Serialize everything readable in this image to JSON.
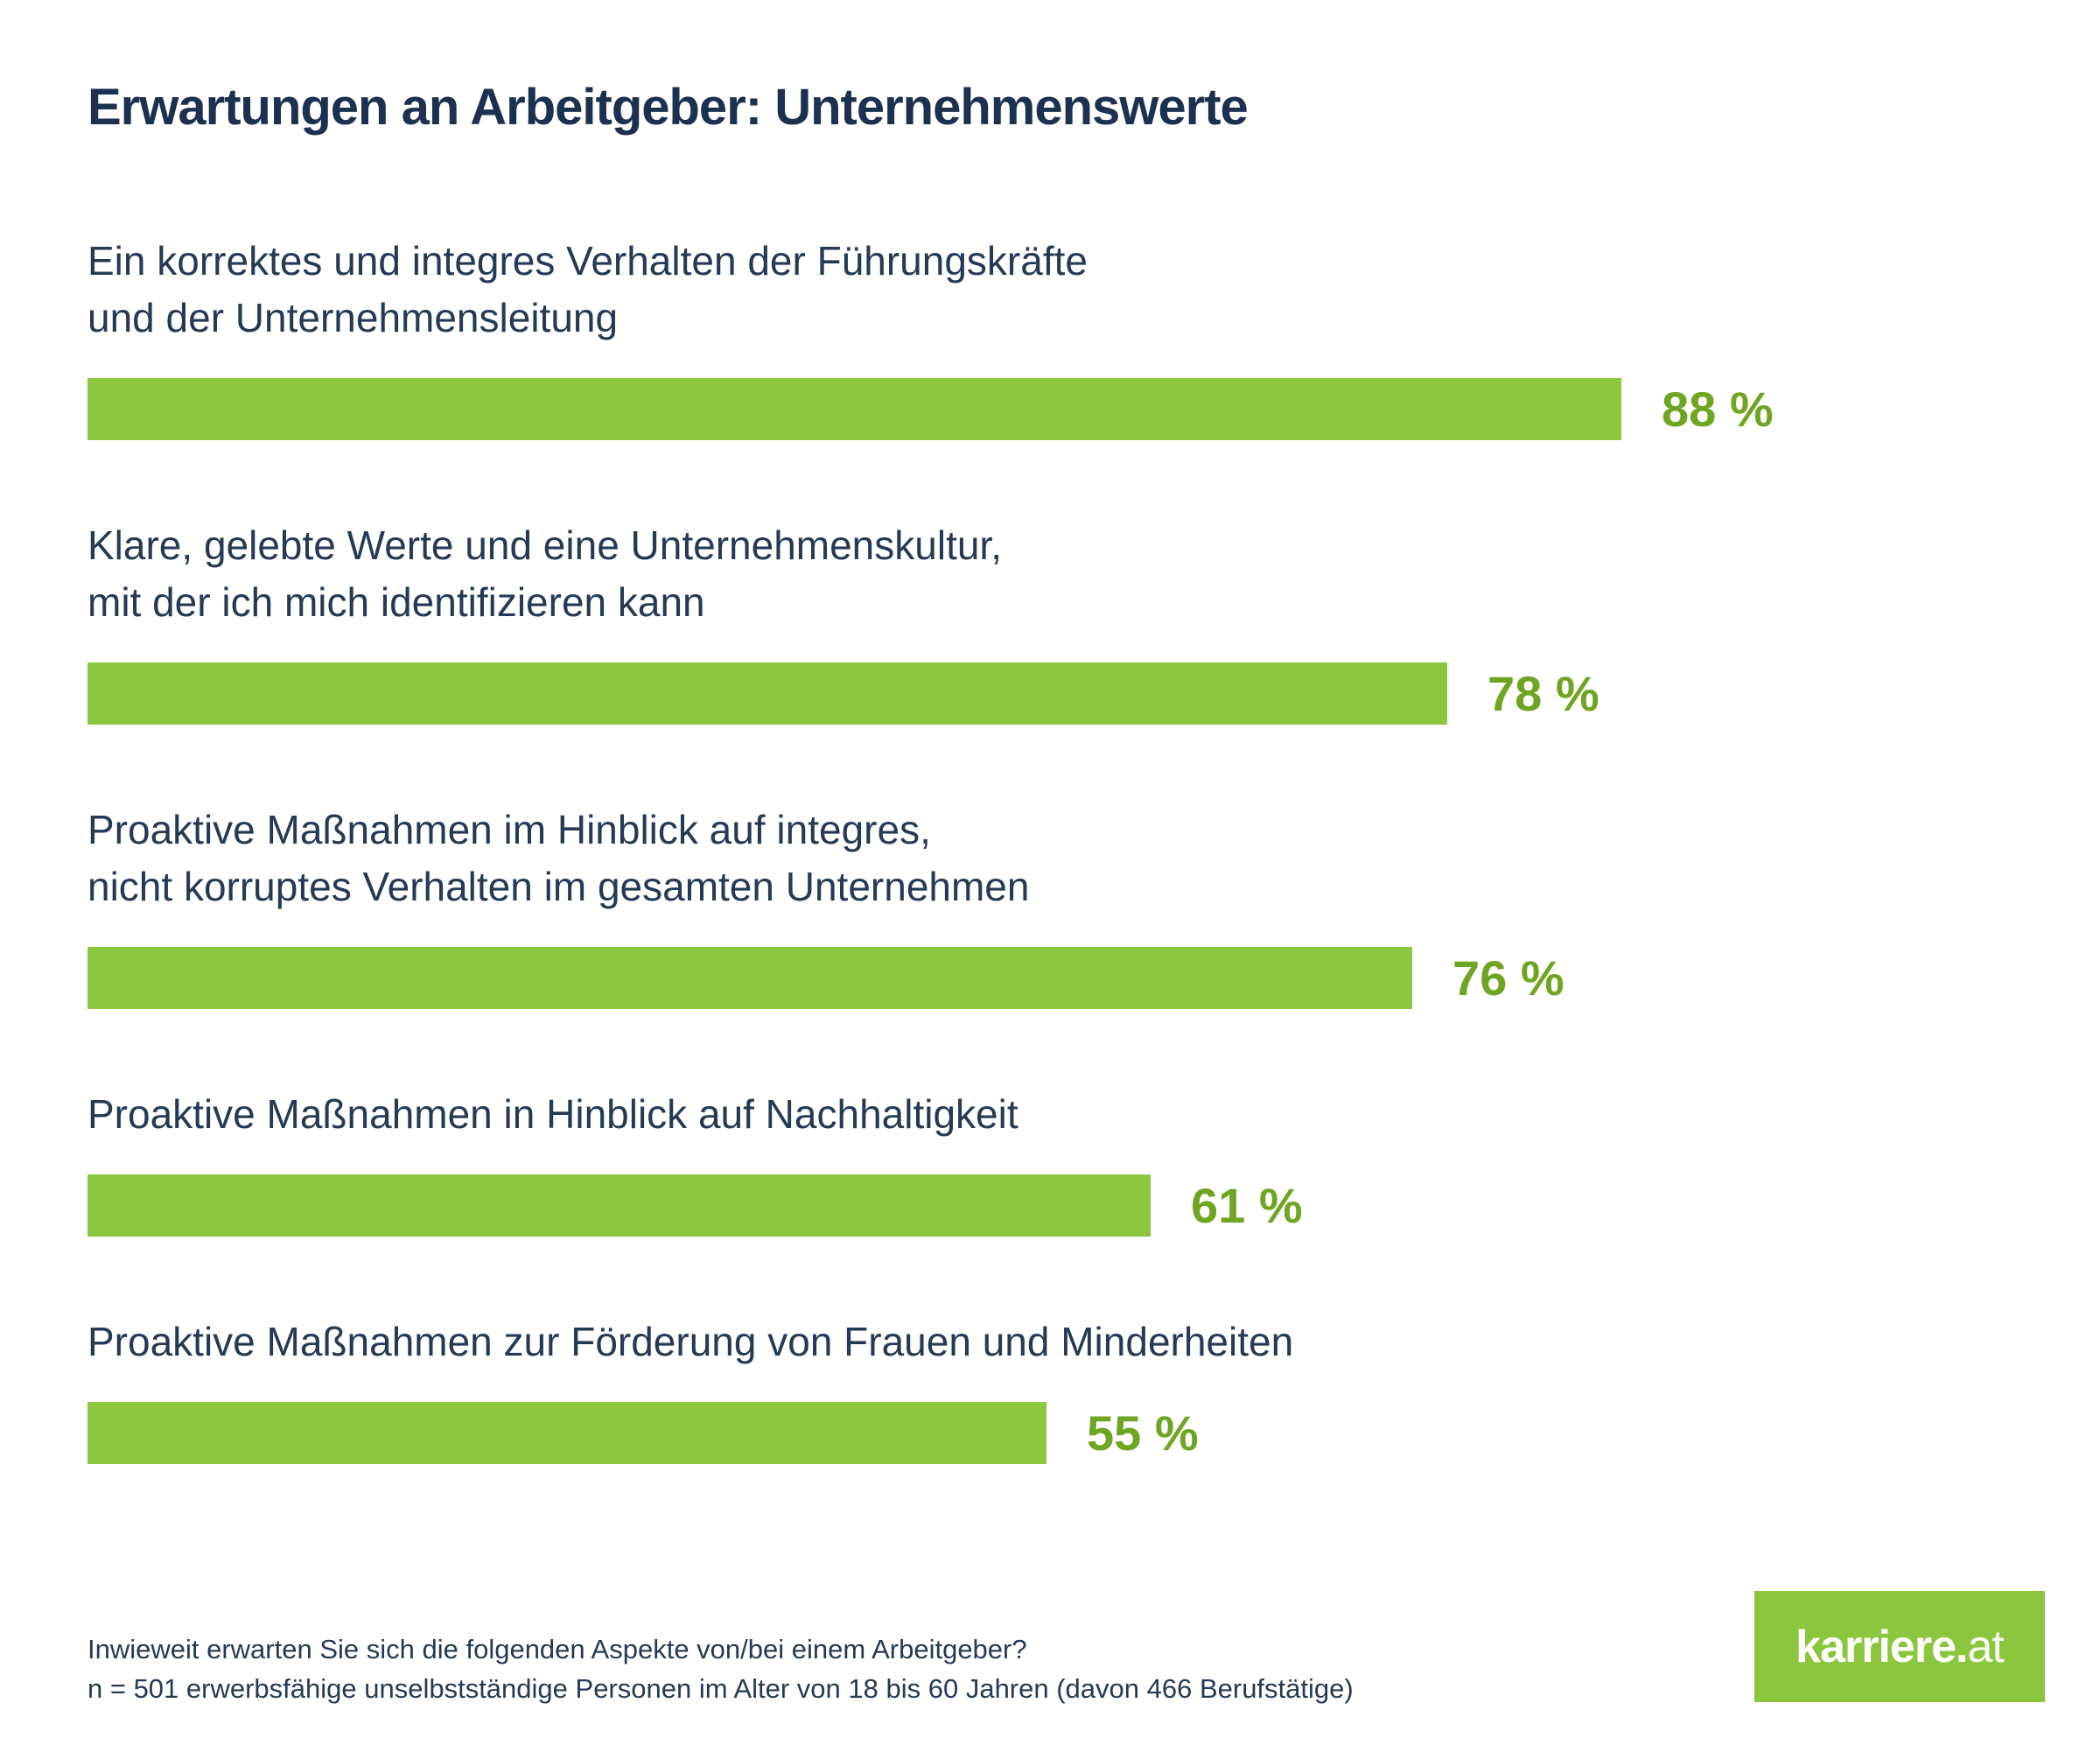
{
  "title": "Erwartungen an Arbeitgeber: Unternehmenswerte",
  "chart_data": {
    "type": "bar",
    "orientation": "horizontal",
    "unit": "%",
    "xlim": [
      0,
      100
    ],
    "grid": false,
    "legend": false,
    "title": "Erwartungen an Arbeitgeber: Unternehmenswerte",
    "bar_color": "#8cc63f",
    "value_label_color": "#6fa523",
    "categories": [
      "Ein korrektes und integres Verhalten der Führungskräfte und der Unternehmensleitung",
      "Klare, gelebte Werte und eine Unternehmenskultur, mit der ich mich identifizieren kann",
      "Proaktive Maßnahmen im Hinblick auf integres, nicht korruptes Verhalten im gesamten Unternehmen",
      "Proaktive Maßnahmen in Hinblick auf Nachhaltigkeit",
      "Proaktive Maßnahmen zur Förderung von Frauen und Minderheiten"
    ],
    "category_lines": [
      [
        "Ein korrektes und integres Verhalten der Führungskräfte",
        "und der Unternehmensleitung"
      ],
      [
        "Klare, gelebte Werte und eine Unternehmenskultur,",
        "mit der ich mich identifizieren kann"
      ],
      [
        "Proaktive Maßnahmen im Hinblick auf integres,",
        "nicht korruptes Verhalten im gesamten Unternehmen"
      ],
      [
        "Proaktive Maßnahmen in Hinblick auf Nachhaltigkeit"
      ],
      [
        "Proaktive Maßnahmen zur Förderung von Frauen und Minderheiten"
      ]
    ],
    "values": [
      88,
      78,
      76,
      61,
      55
    ],
    "value_labels": [
      "88 %",
      "78 %",
      "76 %",
      "61 %",
      "55 %"
    ]
  },
  "footer": {
    "question": "Inwieweit erwarten Sie sich die folgenden Aspekte von/bei einem Arbeitgeber?",
    "sample": "n = 501 erwerbsfähige unselbstständige Personen im Alter von 18 bis 60 Jahren (davon 466 Berufstätige)"
  },
  "logo": {
    "bold_part": "karriere.",
    "light_part": "at"
  },
  "colors": {
    "bar_green": "#8cc63f",
    "value_green": "#6fa523",
    "title_navy": "#1c3050",
    "text_navy": "#253a55",
    "logo_background": "#8cc63f",
    "logo_text": "#ffffff"
  }
}
